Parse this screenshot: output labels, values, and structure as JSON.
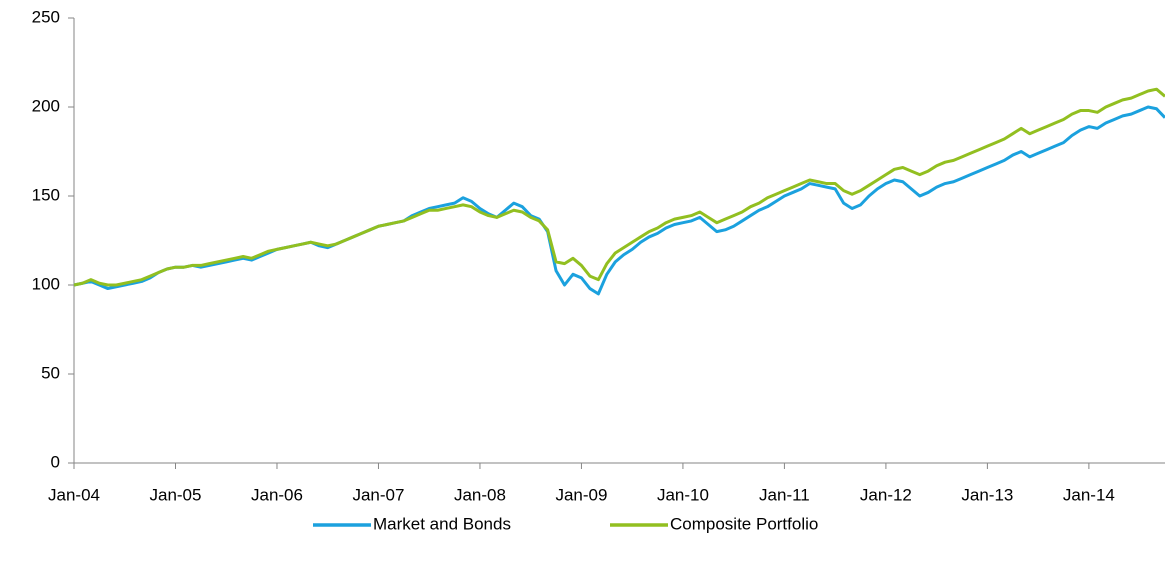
{
  "chart_data": {
    "type": "line",
    "categories": [
      "Jan-04",
      null,
      null,
      null,
      null,
      null,
      null,
      null,
      null,
      null,
      null,
      null,
      "Jan-05",
      null,
      null,
      null,
      null,
      null,
      null,
      null,
      null,
      null,
      null,
      null,
      "Jan-06",
      null,
      null,
      null,
      null,
      null,
      null,
      null,
      null,
      null,
      null,
      null,
      "Jan-07",
      null,
      null,
      null,
      null,
      null,
      null,
      null,
      null,
      null,
      null,
      null,
      "Jan-08",
      null,
      null,
      null,
      null,
      null,
      null,
      null,
      null,
      null,
      null,
      null,
      "Jan-09",
      null,
      null,
      null,
      null,
      null,
      null,
      null,
      null,
      null,
      null,
      null,
      "Jan-10",
      null,
      null,
      null,
      null,
      null,
      null,
      null,
      null,
      null,
      null,
      null,
      "Jan-11",
      null,
      null,
      null,
      null,
      null,
      null,
      null,
      null,
      null,
      null,
      null,
      "Jan-12",
      null,
      null,
      null,
      null,
      null,
      null,
      null,
      null,
      null,
      null,
      null,
      "Jan-13",
      null,
      null,
      null,
      null,
      null,
      null,
      null,
      null,
      null,
      null,
      null,
      "Jan-14",
      null,
      null,
      null,
      null,
      null,
      null,
      null,
      null,
      null
    ],
    "series": [
      {
        "name": "Market and Bonds",
        "color": "#1ba1de",
        "values": [
          100,
          101,
          102,
          100,
          98,
          99,
          100,
          101,
          102,
          104,
          107,
          109,
          110,
          110,
          111,
          110,
          111,
          112,
          113,
          114,
          115,
          114,
          116,
          118,
          120,
          121,
          122,
          123,
          124,
          122,
          121,
          123,
          125,
          127,
          129,
          131,
          133,
          134,
          135,
          136,
          139,
          141,
          143,
          144,
          145,
          146,
          149,
          147,
          143,
          140,
          138,
          142,
          146,
          144,
          139,
          137,
          130,
          108,
          100,
          106,
          104,
          98,
          95,
          106,
          113,
          117,
          120,
          124,
          127,
          129,
          132,
          134,
          135,
          136,
          138,
          134,
          130,
          131,
          133,
          136,
          139,
          142,
          144,
          147,
          150,
          152,
          154,
          157,
          156,
          155,
          154,
          146,
          143,
          145,
          150,
          154,
          157,
          159,
          158,
          154,
          150,
          152,
          155,
          157,
          158,
          160,
          162,
          164,
          166,
          168,
          170,
          173,
          175,
          172,
          174,
          176,
          178,
          180,
          184,
          187,
          189,
          188,
          191,
          193,
          195,
          196,
          198,
          200,
          199,
          194
        ]
      },
      {
        "name": "Composite Portfolio",
        "color": "#92bf20",
        "values": [
          100,
          101,
          103,
          101,
          100,
          100,
          101,
          102,
          103,
          105,
          107,
          109,
          110,
          110,
          111,
          111,
          112,
          113,
          114,
          115,
          116,
          115,
          117,
          119,
          120,
          121,
          122,
          123,
          124,
          123,
          122,
          123,
          125,
          127,
          129,
          131,
          133,
          134,
          135,
          136,
          138,
          140,
          142,
          142,
          143,
          144,
          145,
          144,
          141,
          139,
          138,
          140,
          142,
          141,
          138,
          136,
          131,
          113,
          112,
          115,
          111,
          105,
          103,
          112,
          118,
          121,
          124,
          127,
          130,
          132,
          135,
          137,
          138,
          139,
          141,
          138,
          135,
          137,
          139,
          141,
          144,
          146,
          149,
          151,
          153,
          155,
          157,
          159,
          158,
          157,
          157,
          153,
          151,
          153,
          156,
          159,
          162,
          165,
          166,
          164,
          162,
          164,
          167,
          169,
          170,
          172,
          174,
          176,
          178,
          180,
          182,
          185,
          188,
          185,
          187,
          189,
          191,
          193,
          196,
          198,
          198,
          197,
          200,
          202,
          204,
          205,
          207,
          209,
          210,
          206
        ]
      }
    ],
    "ylim": [
      0,
      250
    ],
    "yticks": [
      0,
      50,
      100,
      150,
      200,
      250
    ],
    "grid": false,
    "legend": "bottom"
  }
}
